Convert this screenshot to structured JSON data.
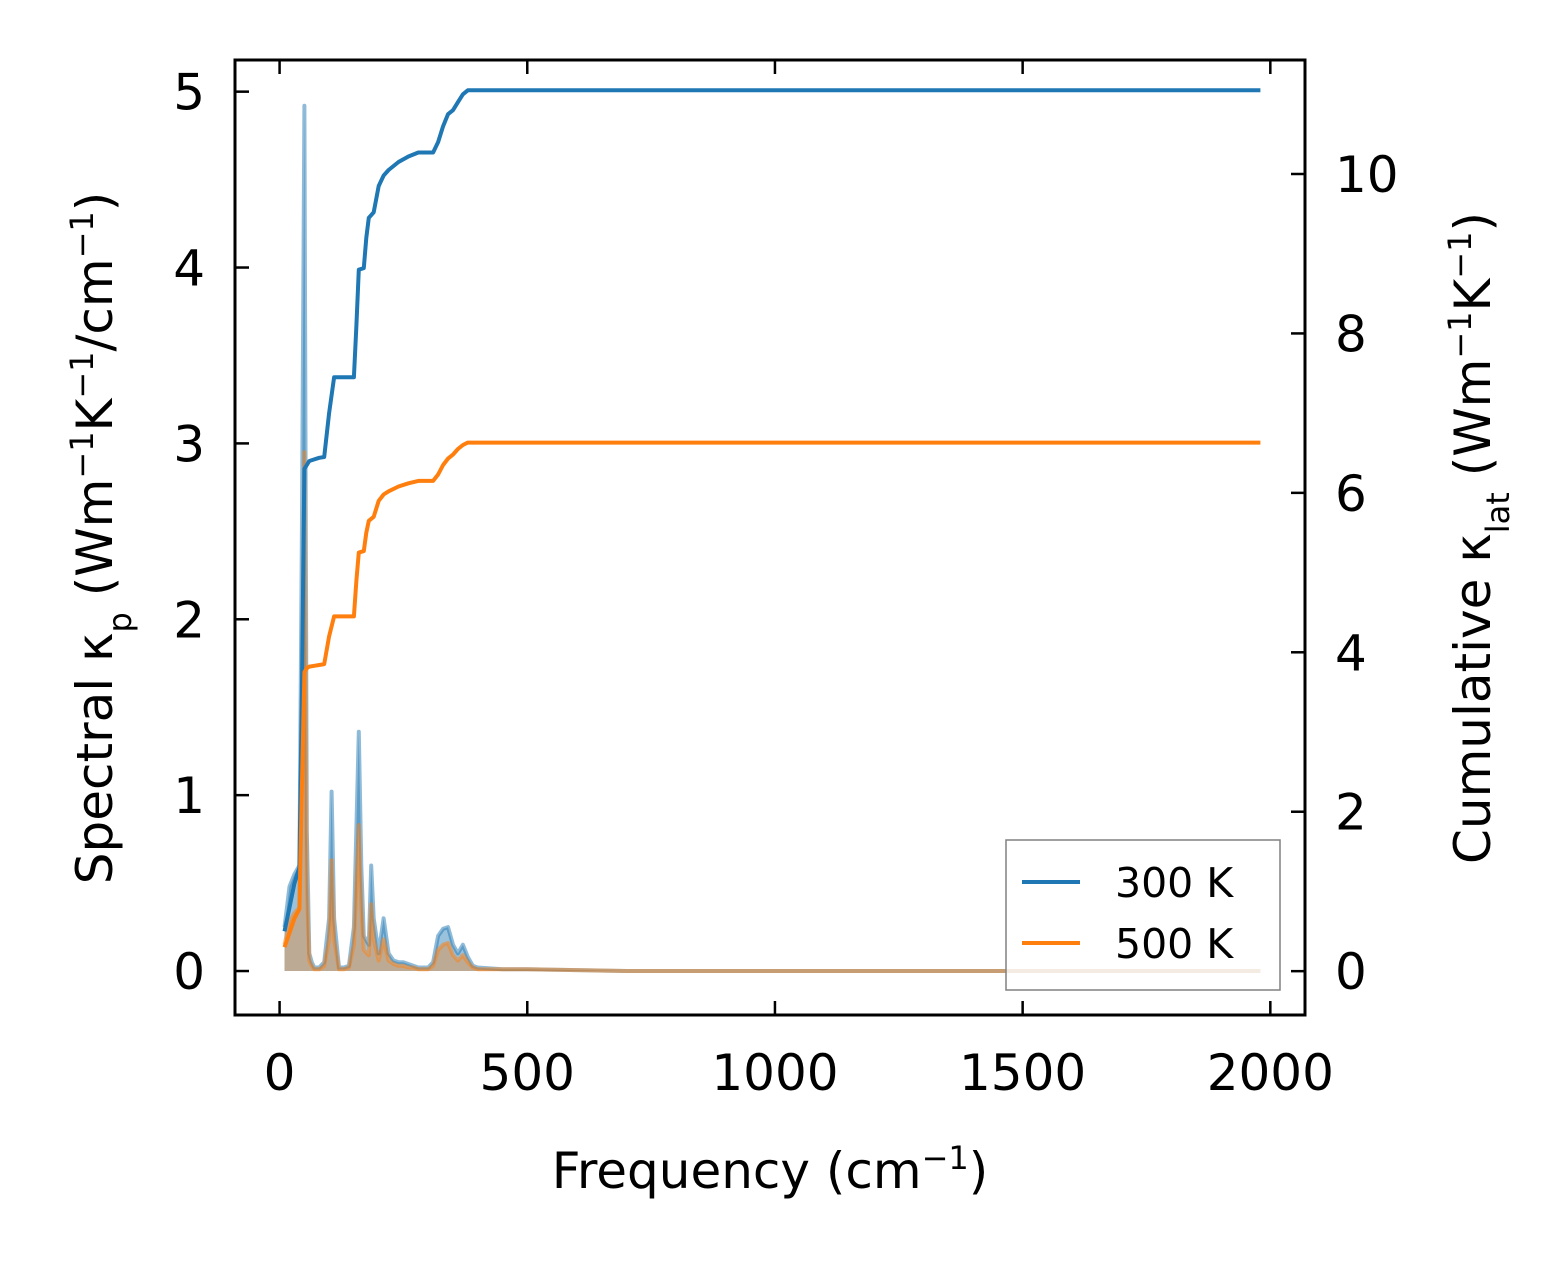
{
  "chart_data": {
    "type": "line",
    "xlabel": "Frequency (cm⁻¹)",
    "ylabel_left": "Spectral κₚ (Wm⁻¹K⁻¹/cm⁻¹)",
    "ylabel_right": "Cumulative κₗₐₜ (Wm⁻¹K⁻¹)",
    "x_ticks": [
      "0",
      "500",
      "1000",
      "1500",
      "2000"
    ],
    "y_left_ticks": [
      "0",
      "1",
      "2",
      "3",
      "4",
      "5"
    ],
    "y_right_ticks": [
      "0",
      "2",
      "4",
      "6",
      "8",
      "10"
    ],
    "xlim": [
      -90,
      2070
    ],
    "ylim_left": [
      -0.25,
      5.18
    ],
    "ylim_right": [
      -0.55,
      11.43
    ],
    "legend_position": "lower-right",
    "colors": {
      "t300": "#1f77b4",
      "t500": "#ff7f0e"
    },
    "spectral_x": [
      10,
      20,
      30,
      40,
      45,
      50,
      55,
      60,
      65,
      70,
      80,
      90,
      100,
      105,
      110,
      120,
      130,
      140,
      150,
      160,
      165,
      170,
      180,
      185,
      190,
      200,
      205,
      210,
      220,
      230,
      240,
      250,
      260,
      270,
      280,
      300,
      310,
      320,
      330,
      340,
      350,
      360,
      370,
      380,
      390,
      400,
      450,
      500,
      700,
      1000,
      1500,
      1980
    ],
    "series": [
      {
        "name": "300 K",
        "spectral": [
          0.25,
          0.48,
          0.55,
          0.6,
          2.5,
          4.92,
          0.8,
          0.1,
          0.05,
          0.02,
          0.02,
          0.05,
          0.3,
          1.02,
          0.3,
          0.02,
          0.02,
          0.03,
          0.25,
          1.36,
          0.6,
          0.2,
          0.15,
          0.6,
          0.3,
          0.1,
          0.2,
          0.3,
          0.1,
          0.06,
          0.05,
          0.05,
          0.04,
          0.03,
          0.02,
          0.02,
          0.05,
          0.2,
          0.24,
          0.25,
          0.15,
          0.1,
          0.15,
          0.08,
          0.03,
          0.02,
          0.01,
          0.01,
          0,
          0,
          0,
          0
        ],
        "cumulative_x": [
          10,
          20,
          30,
          40,
          45,
          50,
          55,
          60,
          70,
          80,
          90,
          100,
          110,
          120,
          130,
          140,
          150,
          155,
          160,
          170,
          175,
          180,
          190,
          200,
          210,
          220,
          240,
          260,
          280,
          300,
          310,
          320,
          330,
          340,
          350,
          360,
          370,
          380,
          400,
          500,
          1000,
          1500,
          1980
        ],
        "cumulative": [
          0.5,
          0.8,
          1.1,
          1.3,
          3.5,
          6.3,
          6.35,
          6.4,
          6.42,
          6.44,
          6.45,
          7.0,
          7.45,
          7.45,
          7.45,
          7.45,
          7.45,
          8.1,
          8.8,
          8.82,
          9.2,
          9.45,
          9.52,
          9.85,
          9.98,
          10.05,
          10.15,
          10.22,
          10.27,
          10.27,
          10.27,
          10.4,
          10.6,
          10.75,
          10.8,
          10.9,
          11.0,
          11.05,
          11.05,
          11.05,
          11.05,
          11.05,
          11.05
        ]
      },
      {
        "name": "500 K",
        "spectral": [
          0.15,
          0.28,
          0.33,
          0.36,
          1.5,
          2.95,
          0.48,
          0.06,
          0.03,
          0.01,
          0.01,
          0.03,
          0.18,
          0.63,
          0.18,
          0.01,
          0.01,
          0.02,
          0.15,
          0.83,
          0.36,
          0.12,
          0.09,
          0.38,
          0.18,
          0.06,
          0.12,
          0.18,
          0.06,
          0.04,
          0.03,
          0.03,
          0.02,
          0.02,
          0.01,
          0.01,
          0.03,
          0.12,
          0.15,
          0.16,
          0.09,
          0.06,
          0.09,
          0.05,
          0.02,
          0.01,
          0.01,
          0.01,
          0,
          0,
          0,
          0
        ],
        "cumulative_x": [
          10,
          20,
          30,
          40,
          45,
          50,
          55,
          60,
          70,
          80,
          90,
          100,
          110,
          120,
          130,
          140,
          150,
          155,
          160,
          170,
          175,
          180,
          190,
          200,
          210,
          220,
          240,
          260,
          280,
          300,
          310,
          320,
          330,
          340,
          350,
          360,
          370,
          380,
          400,
          500,
          1000,
          1500,
          1980
        ],
        "cumulative": [
          0.3,
          0.48,
          0.66,
          0.78,
          2.3,
          3.75,
          3.8,
          3.82,
          3.83,
          3.84,
          3.85,
          4.2,
          4.45,
          4.45,
          4.45,
          4.45,
          4.45,
          4.9,
          5.25,
          5.27,
          5.5,
          5.65,
          5.7,
          5.9,
          5.98,
          6.02,
          6.08,
          6.12,
          6.15,
          6.15,
          6.15,
          6.23,
          6.35,
          6.43,
          6.48,
          6.55,
          6.6,
          6.63,
          6.63,
          6.63,
          6.63,
          6.63,
          6.63
        ]
      }
    ]
  }
}
